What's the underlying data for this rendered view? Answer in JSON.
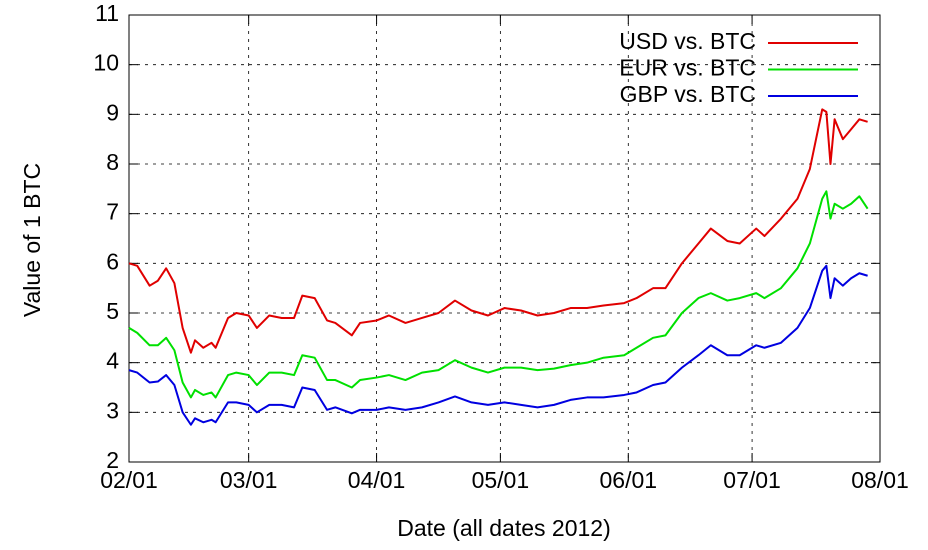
{
  "chart_data": {
    "type": "line",
    "xlabel": "Date (all dates 2012)",
    "ylabel": "Value of 1 BTC",
    "x": [
      "2012-02-01",
      "2012-02-03",
      "2012-02-06",
      "2012-02-08",
      "2012-02-10",
      "2012-02-12",
      "2012-02-14",
      "2012-02-16",
      "2012-02-17",
      "2012-02-19",
      "2012-02-21",
      "2012-02-22",
      "2012-02-25",
      "2012-02-27",
      "2012-03-01",
      "2012-03-03",
      "2012-03-06",
      "2012-03-09",
      "2012-03-12",
      "2012-03-14",
      "2012-03-17",
      "2012-03-20",
      "2012-03-22",
      "2012-03-26",
      "2012-03-28",
      "2012-04-01",
      "2012-04-04",
      "2012-04-08",
      "2012-04-12",
      "2012-04-16",
      "2012-04-20",
      "2012-04-24",
      "2012-04-28",
      "2012-05-02",
      "2012-05-06",
      "2012-05-10",
      "2012-05-14",
      "2012-05-18",
      "2012-05-22",
      "2012-05-26",
      "2012-05-31",
      "2012-06-03",
      "2012-06-07",
      "2012-06-10",
      "2012-06-14",
      "2012-06-18",
      "2012-06-21",
      "2012-06-25",
      "2012-06-28",
      "2012-07-02",
      "2012-07-04",
      "2012-07-08",
      "2012-07-12",
      "2012-07-15",
      "2012-07-18",
      "2012-07-19",
      "2012-07-20",
      "2012-07-21",
      "2012-07-23",
      "2012-07-25",
      "2012-07-27",
      "2012-07-29"
    ],
    "series": [
      {
        "name": "USD vs. BTC",
        "color": "#e00000",
        "values": [
          6.0,
          5.95,
          5.55,
          5.65,
          5.9,
          5.6,
          4.7,
          4.2,
          4.45,
          4.3,
          4.4,
          4.3,
          4.9,
          5.0,
          4.95,
          4.7,
          4.95,
          4.9,
          4.9,
          5.35,
          5.3,
          4.85,
          4.8,
          4.55,
          4.8,
          4.85,
          4.95,
          4.8,
          4.9,
          5.0,
          5.25,
          5.05,
          4.95,
          5.1,
          5.05,
          4.95,
          5.0,
          5.1,
          5.1,
          5.15,
          5.2,
          5.3,
          5.5,
          5.5,
          6.0,
          6.4,
          6.7,
          6.45,
          6.4,
          6.7,
          6.55,
          6.9,
          7.3,
          7.9,
          9.1,
          9.05,
          8.0,
          8.9,
          8.5,
          8.7,
          8.9,
          8.85
        ]
      },
      {
        "name": "EUR vs. BTC",
        "color": "#00e000",
        "values": [
          4.7,
          4.6,
          4.35,
          4.35,
          4.5,
          4.25,
          3.6,
          3.3,
          3.45,
          3.35,
          3.4,
          3.3,
          3.75,
          3.8,
          3.75,
          3.55,
          3.8,
          3.8,
          3.75,
          4.15,
          4.1,
          3.65,
          3.65,
          3.5,
          3.65,
          3.7,
          3.75,
          3.65,
          3.8,
          3.85,
          4.05,
          3.9,
          3.8,
          3.9,
          3.9,
          3.85,
          3.88,
          3.95,
          4.0,
          4.1,
          4.15,
          4.3,
          4.5,
          4.55,
          5.0,
          5.3,
          5.4,
          5.25,
          5.3,
          5.4,
          5.3,
          5.5,
          5.9,
          6.4,
          7.3,
          7.45,
          6.9,
          7.2,
          7.1,
          7.2,
          7.35,
          7.1
        ]
      },
      {
        "name": "GBP vs. BTC",
        "color": "#0000e0",
        "values": [
          3.85,
          3.8,
          3.6,
          3.62,
          3.75,
          3.55,
          3.0,
          2.75,
          2.88,
          2.8,
          2.85,
          2.8,
          3.2,
          3.2,
          3.15,
          3.0,
          3.15,
          3.15,
          3.1,
          3.5,
          3.45,
          3.05,
          3.1,
          2.98,
          3.05,
          3.05,
          3.1,
          3.05,
          3.1,
          3.2,
          3.32,
          3.2,
          3.15,
          3.2,
          3.15,
          3.1,
          3.15,
          3.25,
          3.3,
          3.3,
          3.35,
          3.4,
          3.55,
          3.6,
          3.9,
          4.15,
          4.35,
          4.15,
          4.15,
          4.35,
          4.3,
          4.4,
          4.7,
          5.1,
          5.85,
          5.95,
          5.3,
          5.7,
          5.55,
          5.7,
          5.8,
          5.75
        ]
      }
    ],
    "xlim": [
      "2012-02-01",
      "2012-08-01"
    ],
    "xticks": [
      {
        "value": "2012-02-01",
        "label": "02/01"
      },
      {
        "value": "2012-03-01",
        "label": "03/01"
      },
      {
        "value": "2012-04-01",
        "label": "04/01"
      },
      {
        "value": "2012-05-01",
        "label": "05/01"
      },
      {
        "value": "2012-06-01",
        "label": "06/01"
      },
      {
        "value": "2012-07-01",
        "label": "07/01"
      },
      {
        "value": "2012-08-01",
        "label": "08/01"
      }
    ],
    "ylim": [
      2,
      11
    ],
    "yticks": [
      2,
      3,
      4,
      5,
      6,
      7,
      8,
      9,
      10,
      11
    ],
    "grid": true,
    "legend": "top-right"
  }
}
